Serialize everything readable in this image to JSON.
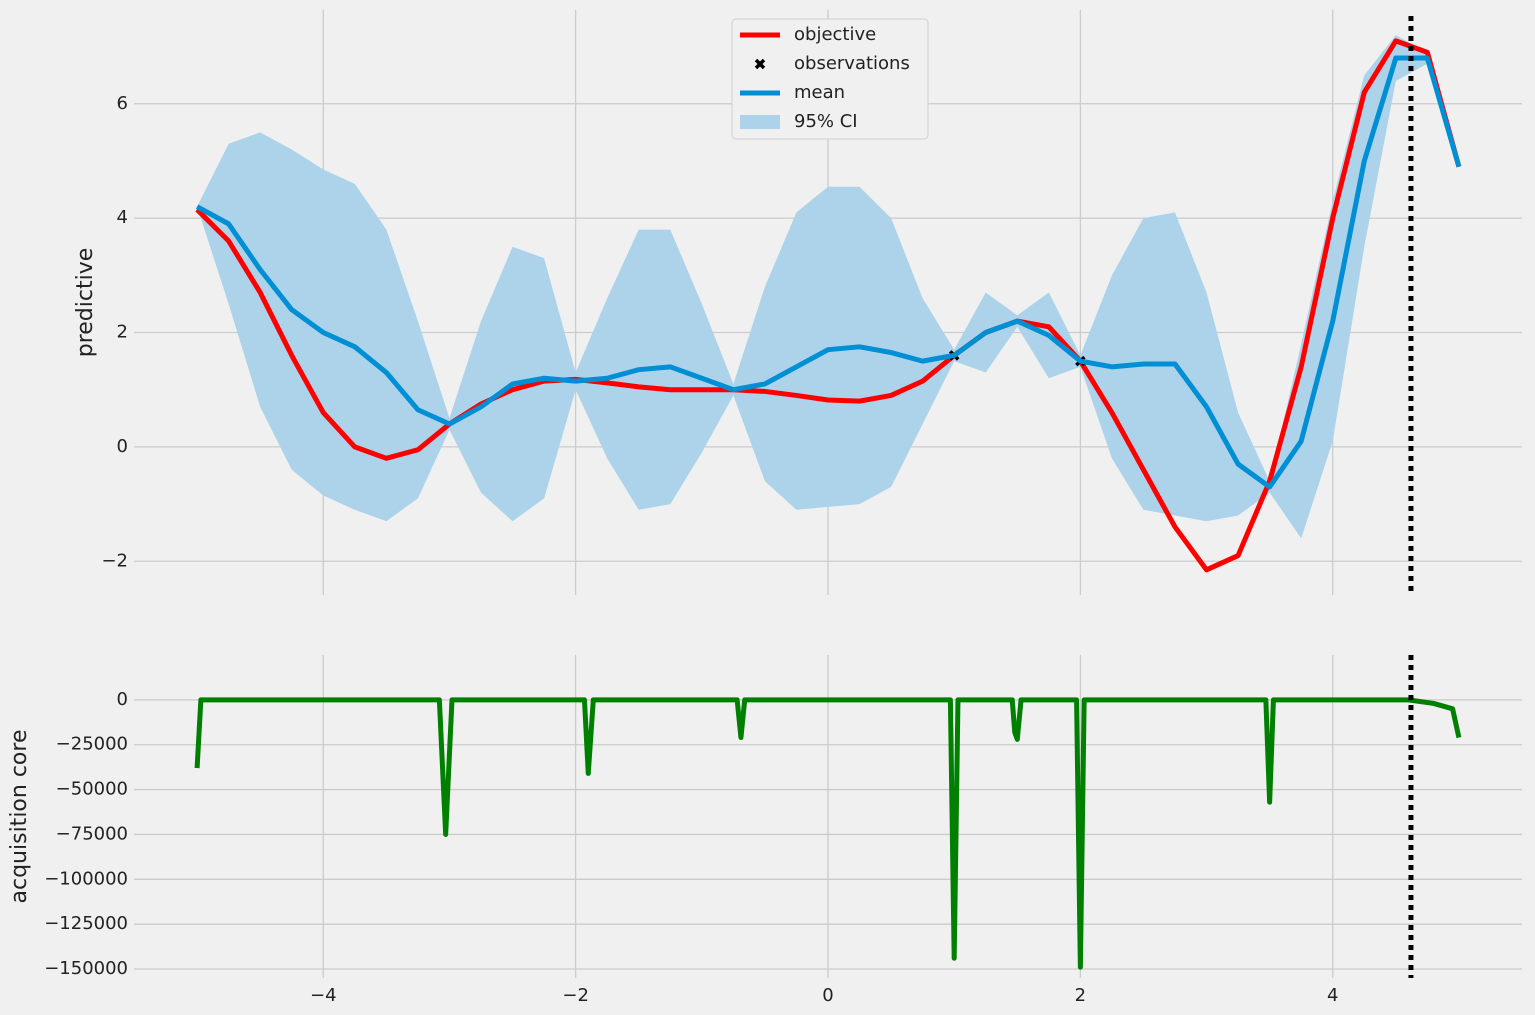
{
  "chart_data": [
    {
      "type": "line",
      "ylabel": "predictive",
      "x": [
        -5,
        -4.75,
        -4.5,
        -4.25,
        -4,
        -3.75,
        -3.5,
        -3.25,
        -3,
        -2.75,
        -2.5,
        -2.25,
        -2,
        -1.75,
        -1.5,
        -1.25,
        -1,
        -0.75,
        -0.5,
        -0.25,
        0,
        0.25,
        0.5,
        0.75,
        1,
        1.25,
        1.5,
        1.75,
        2,
        2.25,
        2.5,
        2.75,
        3,
        3.25,
        3.5,
        3.75,
        4,
        4.25,
        4.5,
        4.75,
        5
      ],
      "series": [
        {
          "name": "95% CI",
          "kind": "band",
          "color": "#acd3e9",
          "upper": [
            4.2,
            5.3,
            5.5,
            5.2,
            4.85,
            4.6,
            3.8,
            2.2,
            0.5,
            2.2,
            3.5,
            3.3,
            1.3,
            2.6,
            3.8,
            3.8,
            2.5,
            1.1,
            2.8,
            4.1,
            4.55,
            4.55,
            4.0,
            2.6,
            1.7,
            2.7,
            2.3,
            2.7,
            1.6,
            3.0,
            4.0,
            4.1,
            2.7,
            0.6,
            -0.6,
            1.8,
            4.3,
            6.5,
            7.2,
            6.9,
            4.9
          ],
          "lower": [
            4.2,
            2.5,
            0.7,
            -0.4,
            -0.85,
            -1.1,
            -1.3,
            -0.9,
            0.3,
            -0.8,
            -1.3,
            -0.9,
            1.0,
            -0.2,
            -1.1,
            -1.0,
            -0.1,
            0.9,
            -0.6,
            -1.1,
            -1.05,
            -1.0,
            -0.7,
            0.4,
            1.5,
            1.3,
            2.1,
            1.2,
            1.4,
            -0.2,
            -1.1,
            -1.2,
            -1.3,
            -1.2,
            -0.8,
            -1.6,
            0.1,
            3.5,
            6.4,
            6.7,
            4.9
          ]
        },
        {
          "name": "objective",
          "kind": "line",
          "color": "#ff0000",
          "values": [
            4.15,
            3.6,
            2.7,
            1.6,
            0.6,
            0.0,
            -0.2,
            -0.05,
            0.4,
            0.75,
            1.0,
            1.15,
            1.18,
            1.12,
            1.05,
            1.0,
            1.0,
            1.0,
            0.97,
            0.9,
            0.82,
            0.8,
            0.9,
            1.15,
            1.6,
            2.0,
            2.2,
            2.1,
            1.5,
            0.6,
            -0.4,
            -1.4,
            -2.15,
            -1.9,
            -0.6,
            1.4,
            4.0,
            6.2,
            7.1,
            6.9,
            4.9
          ]
        },
        {
          "name": "observations",
          "kind": "points",
          "color": "#000000",
          "x": [
            1,
            2
          ],
          "values": [
            1.6,
            1.5
          ]
        },
        {
          "name": "mean",
          "kind": "line",
          "color": "#008fd5",
          "values": [
            4.2,
            3.9,
            3.1,
            2.4,
            2.0,
            1.75,
            1.3,
            0.65,
            0.4,
            0.7,
            1.1,
            1.2,
            1.15,
            1.2,
            1.35,
            1.4,
            1.2,
            1.0,
            1.1,
            1.4,
            1.7,
            1.75,
            1.65,
            1.5,
            1.6,
            2.0,
            2.2,
            1.95,
            1.5,
            1.4,
            1.45,
            1.45,
            0.7,
            -0.3,
            -0.7,
            0.1,
            2.2,
            5.0,
            6.8,
            6.8,
            4.9
          ]
        }
      ],
      "vline": 4.62,
      "xlim": [
        -5.5,
        5.5
      ],
      "ylim": [
        -2.59,
        7.64
      ],
      "xticks": [
        -4,
        -2,
        0,
        2,
        4
      ],
      "show_xtick_labels": false,
      "yticks": [
        {
          "value": -2,
          "label": "−2"
        },
        0,
        2,
        4,
        6
      ],
      "grid": true,
      "legend": "upper center"
    },
    {
      "type": "line",
      "ylabel": "acquisition core",
      "x": [
        -5,
        -4.97,
        -3.08,
        -3.03,
        -2.98,
        -1.93,
        -1.9,
        -1.86,
        -0.72,
        -0.69,
        -0.66,
        0.97,
        1.0,
        1.03,
        1.46,
        1.48,
        1.5,
        1.53,
        1.97,
        2.0,
        2.03,
        3.47,
        3.5,
        3.53,
        4.6,
        4.8,
        4.95,
        5.0
      ],
      "series": [
        {
          "name": "acquisition",
          "kind": "line",
          "color": "#008000",
          "values": [
            -38000,
            0,
            0,
            -75000,
            0,
            0,
            -41000,
            0,
            0,
            -21000,
            0,
            0,
            -144000,
            0,
            0,
            -18000,
            -22000,
            0,
            0,
            -149000,
            0,
            0,
            -57000,
            0,
            0,
            -2000,
            -5000,
            -21000
          ]
        }
      ],
      "vline": 4.62,
      "xlim": [
        -5.5,
        5.5
      ],
      "ylim": [
        -155000,
        25000
      ],
      "xticks": [
        {
          "value": -4,
          "label": "−4"
        },
        {
          "value": -2,
          "label": "−2"
        },
        0,
        2,
        4
      ],
      "show_xtick_labels": true,
      "yticks": [
        {
          "value": -150000,
          "label": "−150000"
        },
        {
          "value": -125000,
          "label": "−125000"
        },
        {
          "value": -100000,
          "label": "−100000"
        },
        {
          "value": -75000,
          "label": "−75000"
        },
        {
          "value": -50000,
          "label": "−50000"
        },
        {
          "value": -25000,
          "label": "−25000"
        },
        0
      ],
      "grid": true
    }
  ]
}
